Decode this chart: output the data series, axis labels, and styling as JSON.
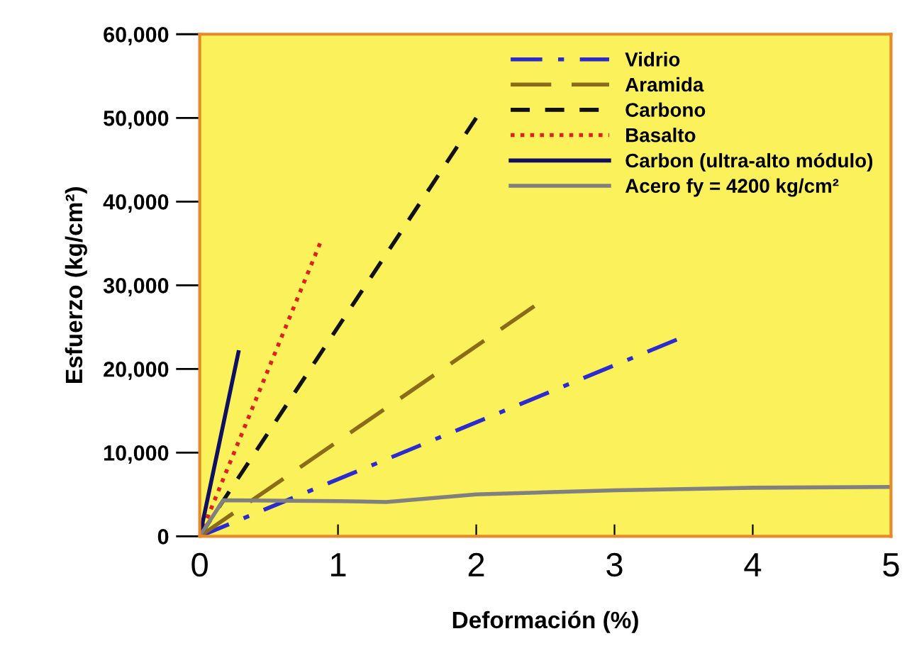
{
  "chart_data": {
    "type": "line",
    "xlabel": "Deformación (%)",
    "ylabel": "Esfuerzo (kg/cm²)",
    "xlim": [
      0,
      5
    ],
    "xticks": [
      0,
      1,
      2,
      3,
      4,
      5
    ],
    "ylim": [
      0,
      60000
    ],
    "yticks": [
      {
        "value": 0,
        "label": "0"
      },
      {
        "value": 10000,
        "label": "10,000"
      },
      {
        "value": 20000,
        "label": "20,000"
      },
      {
        "value": 30000,
        "label": "30,000"
      },
      {
        "value": 40000,
        "label": "40,000"
      },
      {
        "value": 50000,
        "label": "50,000"
      },
      {
        "value": 60000,
        "label": "60,000"
      }
    ],
    "grid": false,
    "legend": "top right",
    "marker": "none",
    "series": [
      {
        "name": "Vidrio",
        "color": "#2b2bd0",
        "line_style": "dashdot",
        "x": [
          0,
          3.45
        ],
        "values": [
          0,
          23500
        ]
      },
      {
        "name": "Aramida",
        "color": "#8b6a1a",
        "line_style": "longdash",
        "x": [
          0,
          2.42
        ],
        "values": [
          0,
          27500
        ]
      },
      {
        "name": "Carbono",
        "color": "#111111",
        "line_style": "dashed",
        "x": [
          0,
          2.0
        ],
        "values": [
          0,
          50000
        ]
      },
      {
        "name": "Basalto",
        "color": "#e02020",
        "line_style": "dotted",
        "x": [
          0,
          0.87
        ],
        "values": [
          0,
          35000
        ]
      },
      {
        "name": "Carbon (ultra-alto módulo)",
        "color": "#101060",
        "line_style": "solid",
        "x": [
          0,
          0.28
        ],
        "values": [
          0,
          22000
        ]
      },
      {
        "name": "Acero fy = 4200 kg/cm²",
        "color": "#808080",
        "line_style": "solid",
        "x": [
          0,
          0.17,
          1.0,
          1.35,
          2.0,
          3.0,
          4.0,
          5.0
        ],
        "values": [
          0,
          4300,
          4200,
          4100,
          5000,
          5500,
          5800,
          5900
        ]
      }
    ]
  }
}
